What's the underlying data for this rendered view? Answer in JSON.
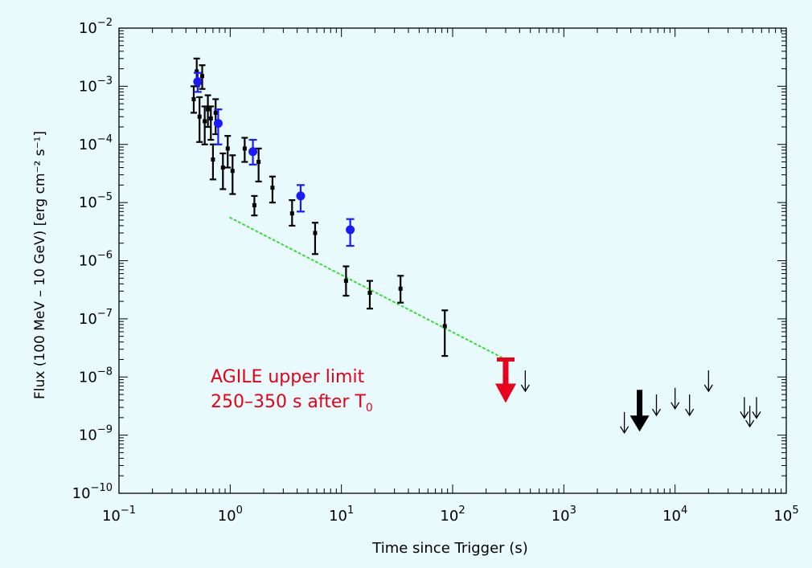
{
  "chart_data": {
    "type": "scatter",
    "xlabel": "Time since Trigger (s)",
    "ylabel": "Flux (100 MeV – 10 GeV) [erg cm⁻² s⁻¹]",
    "x_scale": "log",
    "y_scale": "log",
    "xlim": [
      0.1,
      100000
    ],
    "ylim": [
      1e-10,
      0.01
    ],
    "x_ticks": [
      {
        "value": 0.1,
        "base": "10",
        "exp": "−1"
      },
      {
        "value": 1,
        "base": "10",
        "exp": "0"
      },
      {
        "value": 10,
        "base": "10",
        "exp": "1"
      },
      {
        "value": 100,
        "base": "10",
        "exp": "2"
      },
      {
        "value": 1000,
        "base": "10",
        "exp": "3"
      },
      {
        "value": 10000,
        "base": "10",
        "exp": "4"
      },
      {
        "value": 100000,
        "base": "10",
        "exp": "5"
      }
    ],
    "y_ticks": [
      {
        "value": 1e-10,
        "base": "10",
        "exp": "−10"
      },
      {
        "value": 1e-09,
        "base": "10",
        "exp": "−9"
      },
      {
        "value": 1e-08,
        "base": "10",
        "exp": "−8"
      },
      {
        "value": 1e-07,
        "base": "10",
        "exp": "−7"
      },
      {
        "value": 1e-06,
        "base": "10",
        "exp": "−6"
      },
      {
        "value": 1e-05,
        "base": "10",
        "exp": "−5"
      },
      {
        "value": 0.0001,
        "base": "10",
        "exp": "−4"
      },
      {
        "value": 0.001,
        "base": "10",
        "exp": "−3"
      },
      {
        "value": 0.01,
        "base": "10",
        "exp": "−2"
      }
    ],
    "colors": {
      "background": "#e8fafb",
      "black_series": "#000000",
      "blue_series": "#1a1aff",
      "red_limit": "#e8001c",
      "fit_line": "#33dd33"
    },
    "series": [
      {
        "color": "black",
        "marker": "square",
        "points": [
          {
            "x": 0.47,
            "y": 0.0006,
            "ylo": 0.00035,
            "yhi": 0.001
          },
          {
            "x": 0.5,
            "y": 0.0018,
            "ylo": 0.001,
            "yhi": 0.003
          },
          {
            "x": 0.53,
            "y": 0.0003,
            "ylo": 0.00011,
            "yhi": 0.00065
          },
          {
            "x": 0.56,
            "y": 0.0015,
            "ylo": 0.0009,
            "yhi": 0.0023
          },
          {
            "x": 0.59,
            "y": 0.00025,
            "ylo": 0.0001,
            "yhi": 0.00045
          },
          {
            "x": 0.63,
            "y": 0.0004,
            "ylo": 0.0002,
            "yhi": 0.0007
          },
          {
            "x": 0.67,
            "y": 0.00028,
            "ylo": 0.00012,
            "yhi": 0.00045
          },
          {
            "x": 0.7,
            "y": 5.5e-05,
            "ylo": 2.5e-05,
            "yhi": 0.0001
          },
          {
            "x": 0.74,
            "y": 0.00035,
            "ylo": 0.00015,
            "yhi": 0.0006
          },
          {
            "x": 0.86,
            "y": 4e-05,
            "ylo": 1.7e-05,
            "yhi": 7e-05
          },
          {
            "x": 0.95,
            "y": 8.5e-05,
            "ylo": 4e-05,
            "yhi": 0.00014
          },
          {
            "x": 1.05,
            "y": 3.5e-05,
            "ylo": 1.4e-05,
            "yhi": 6.5e-05
          },
          {
            "x": 1.35,
            "y": 8.5e-05,
            "ylo": 5e-05,
            "yhi": 0.00013
          },
          {
            "x": 1.65,
            "y": 9e-06,
            "ylo": 6e-06,
            "yhi": 1.3e-05
          },
          {
            "x": 1.8,
            "y": 5e-05,
            "ylo": 2.3e-05,
            "yhi": 8.5e-05
          },
          {
            "x": 2.4,
            "y": 1.8e-05,
            "ylo": 1e-05,
            "yhi": 2.8e-05
          },
          {
            "x": 3.6,
            "y": 6.5e-06,
            "ylo": 4e-06,
            "yhi": 1.1e-05
          },
          {
            "x": 5.8,
            "y": 3e-06,
            "ylo": 1.3e-06,
            "yhi": 4.5e-06
          },
          {
            "x": 11.0,
            "y": 4.5e-07,
            "ylo": 2.5e-07,
            "yhi": 8e-07
          },
          {
            "x": 18.0,
            "y": 2.8e-07,
            "ylo": 1.5e-07,
            "yhi": 4.5e-07
          },
          {
            "x": 34.0,
            "y": 3.3e-07,
            "ylo": 1.9e-07,
            "yhi": 5.5e-07
          },
          {
            "x": 85.0,
            "y": 7.5e-08,
            "ylo": 2.3e-08,
            "yhi": 1.4e-07
          }
        ]
      },
      {
        "color": "blue",
        "marker": "circle",
        "points": [
          {
            "x": 0.51,
            "y": 0.0012,
            "ylo": 0.0008,
            "yhi": 0.0017
          },
          {
            "x": 0.78,
            "y": 0.00023,
            "ylo": 0.0001,
            "yhi": 0.0004
          },
          {
            "x": 1.6,
            "y": 7.5e-05,
            "ylo": 4.5e-05,
            "yhi": 0.00012
          },
          {
            "x": 4.3,
            "y": 1.3e-05,
            "ylo": 7e-06,
            "yhi": 2e-05
          },
          {
            "x": 12.0,
            "y": 3.4e-06,
            "ylo": 1.8e-06,
            "yhi": 5.2e-06
          }
        ]
      }
    ],
    "fit_line": {
      "style": "dotted",
      "x": [
        1.0,
        300
      ],
      "y": [
        5.5e-06,
        2e-08
      ]
    },
    "upper_limits": [
      {
        "x": 450,
        "y": 1.3e-08,
        "style": "thin"
      },
      {
        "x": 3500,
        "y": 2.5e-09,
        "style": "thin"
      },
      {
        "x": 6800,
        "y": 5e-09,
        "style": "thin"
      },
      {
        "x": 10000,
        "y": 6.5e-09,
        "style": "thin"
      },
      {
        "x": 13500,
        "y": 5e-09,
        "style": "thin"
      },
      {
        "x": 20000,
        "y": 1.3e-08,
        "style": "thin"
      },
      {
        "x": 42000,
        "y": 4.5e-09,
        "style": "thin"
      },
      {
        "x": 47000,
        "y": 3.2e-09,
        "style": "thin"
      },
      {
        "x": 54000,
        "y": 4.5e-09,
        "style": "thin"
      },
      {
        "x": 4800,
        "y": 6e-09,
        "style": "thick"
      }
    ],
    "agile_limit": {
      "x": 300,
      "y": 2e-08
    },
    "annotation": {
      "line1": "AGILE upper limit",
      "line2_prefix": "250–350 s after T",
      "line2_subscript": "0"
    }
  }
}
